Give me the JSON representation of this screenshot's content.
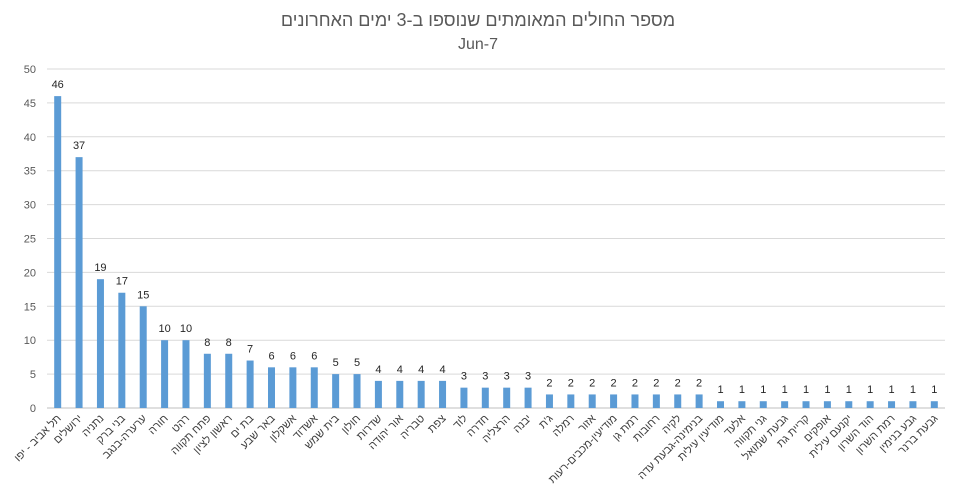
{
  "chart_data": {
    "type": "bar",
    "title": "מספר החולים המאומתים שנוספו ב-3 ימים האחרונים",
    "subtitle": "Jun-7",
    "xlabel": "",
    "ylabel": "",
    "ylim": [
      0,
      50
    ],
    "yticks": [
      0,
      5,
      10,
      15,
      20,
      25,
      30,
      35,
      40,
      45,
      50
    ],
    "grid": true,
    "legend": "none",
    "bar_color": "#5b9bd5",
    "categories": [
      "תל אביב - יפו",
      "ירושלים",
      "נתניה",
      "בני ברק",
      "ערערה-בנגב",
      "חורה",
      "רהט",
      "פתח תקווה",
      "ראשון לציון",
      "בת ים",
      "באר שבע",
      "אשקלון",
      "אשדוד",
      "בית שמש",
      "חולון",
      "שדרות",
      "אור יהודה",
      "טבריה",
      "צפת",
      "לוד",
      "חדרה",
      "הרצליה",
      "יבנה",
      "ג'ת",
      "רמלה",
      "אזור",
      "מודיעין-מכבים-רעות",
      "רמת גן",
      "רחובות",
      "לקיה",
      "בנימינה-גבעת עדה",
      "מודיעין עילית",
      "אלעד",
      "גני תקווה",
      "גבעת שמואל",
      "קריית גת",
      "אופקים",
      "יקנעם עילית",
      "הוד השרון",
      "רמת השרון",
      "גבע בנימין",
      "גבעת ברנר"
    ],
    "values": [
      46,
      37,
      19,
      17,
      15,
      10,
      10,
      8,
      8,
      7,
      6,
      6,
      6,
      5,
      5,
      4,
      4,
      4,
      4,
      3,
      3,
      3,
      3,
      2,
      2,
      2,
      2,
      2,
      2,
      2,
      2,
      1,
      1,
      1,
      1,
      1,
      1,
      1,
      1,
      1,
      1,
      1
    ]
  }
}
